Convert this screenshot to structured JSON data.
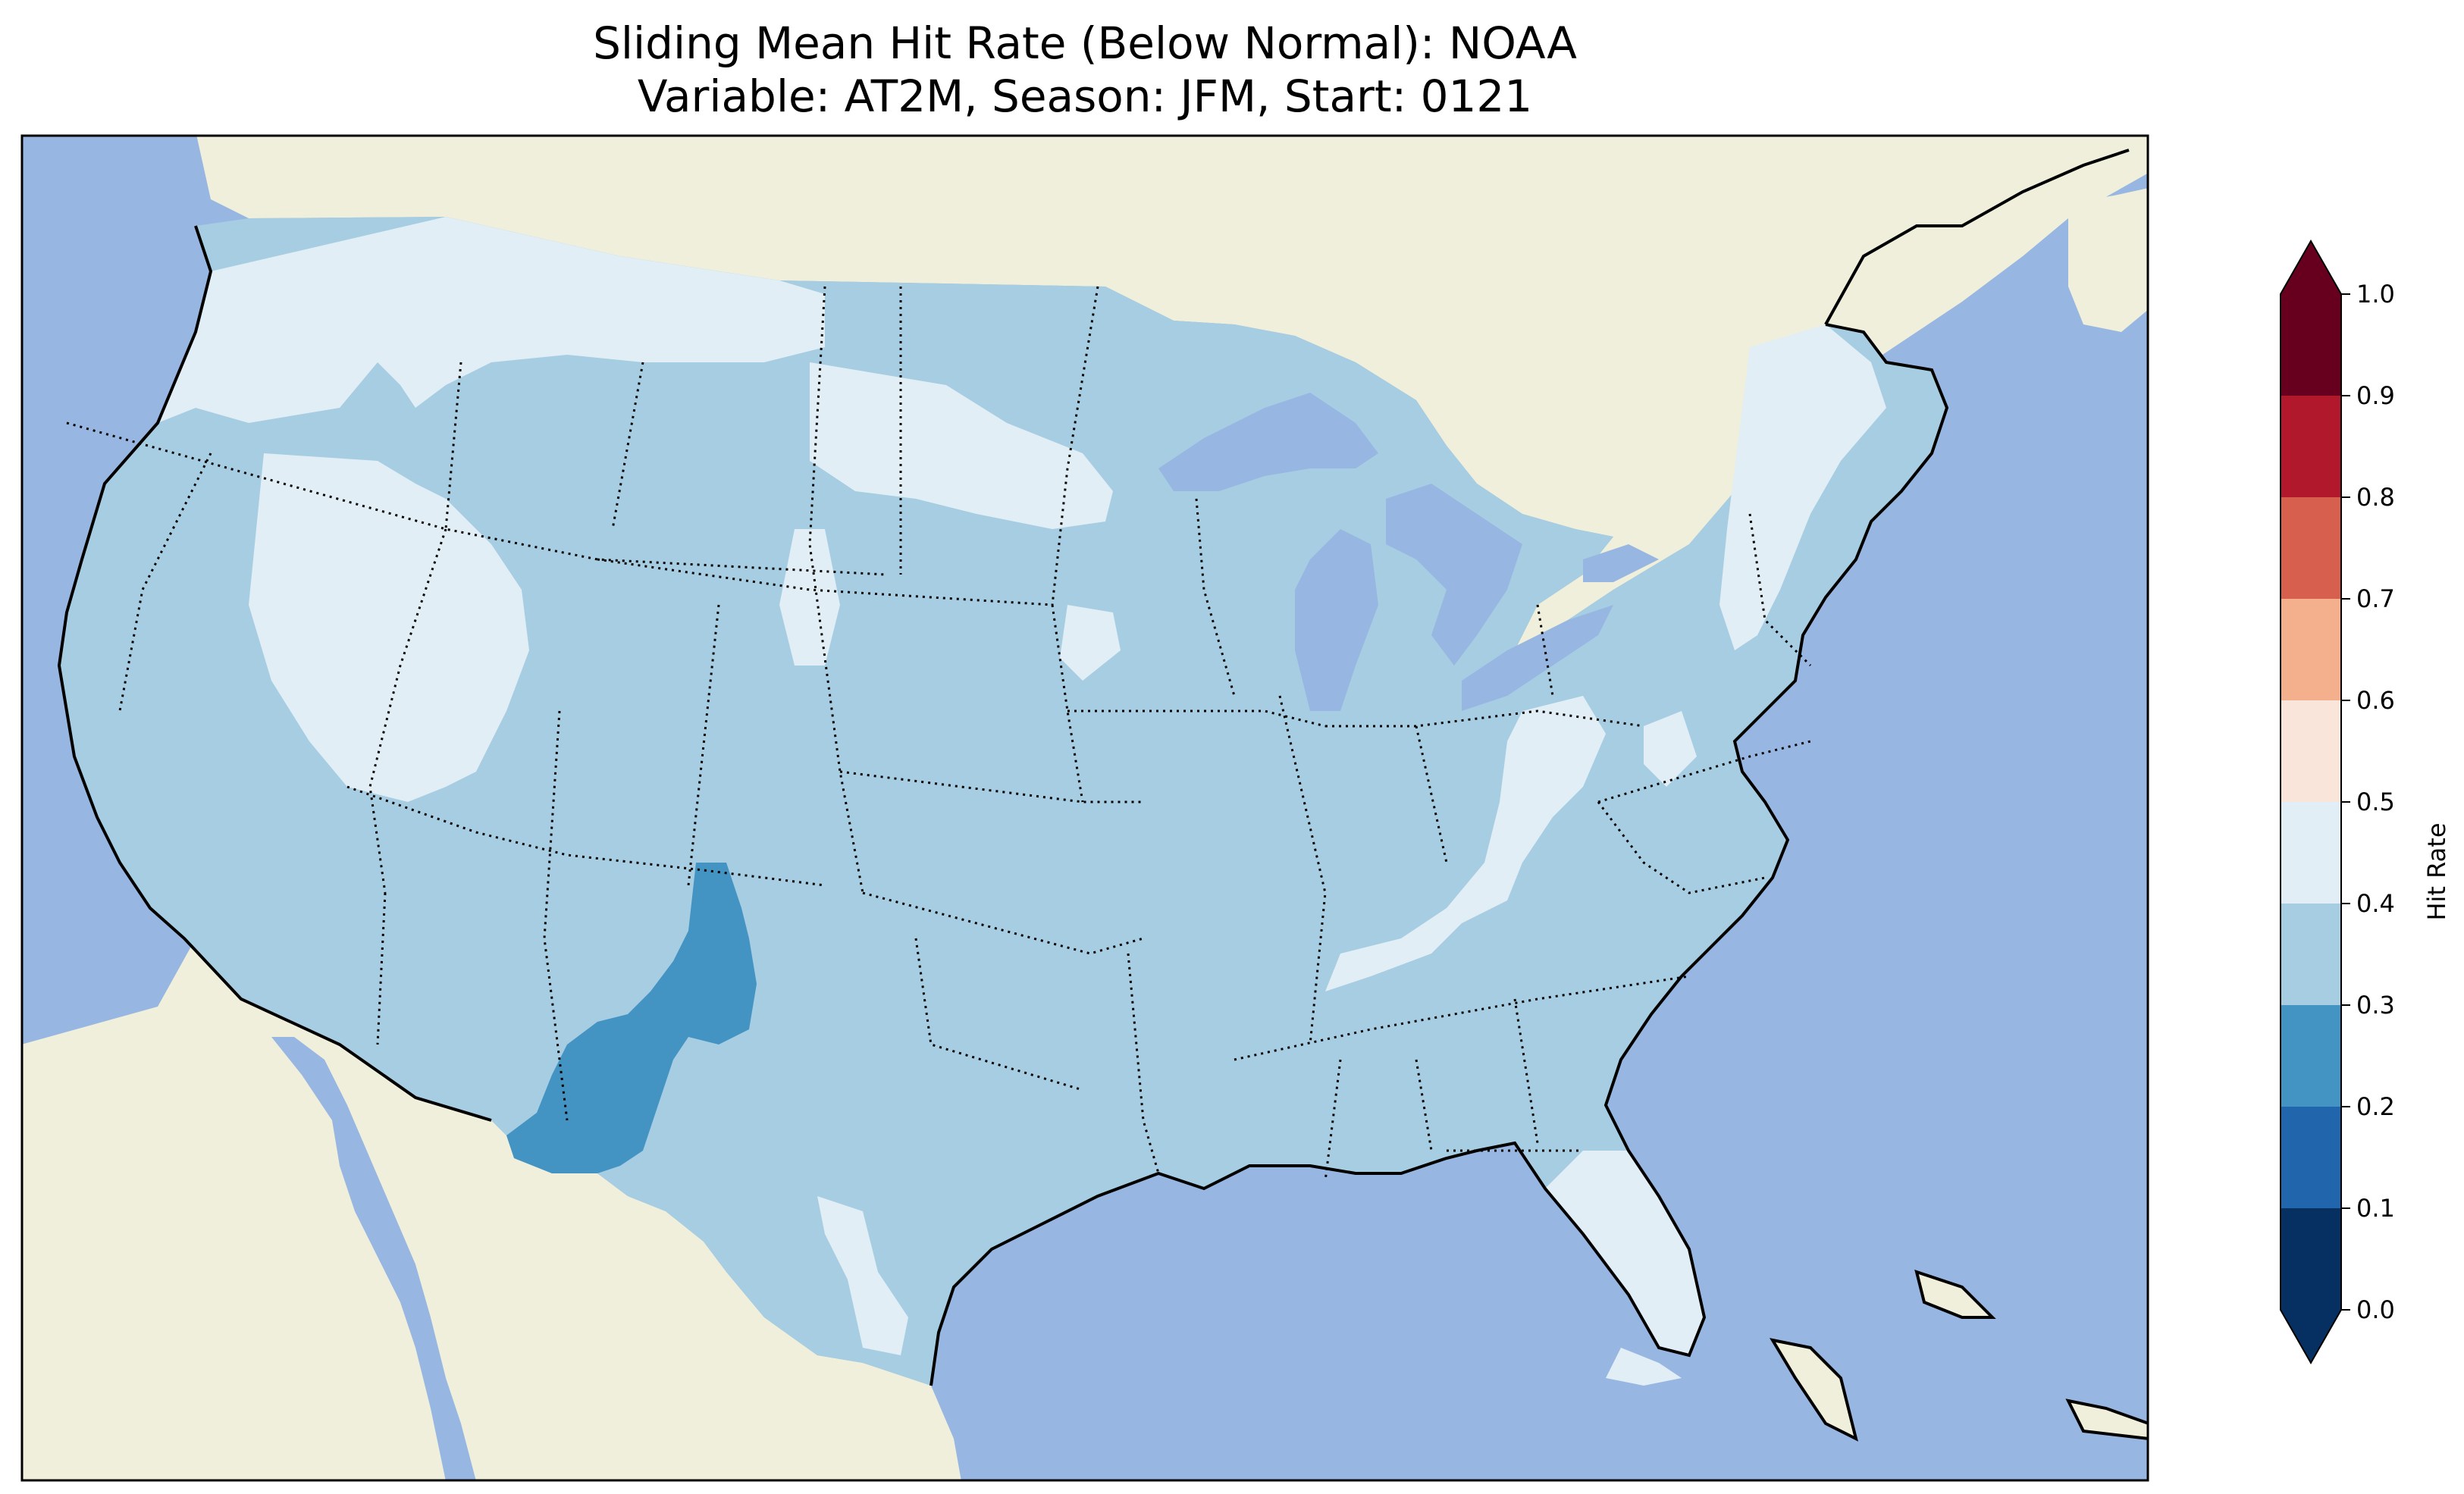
{
  "title": {
    "line1": "Sliding Mean Hit Rate (Below Normal): NOAA",
    "line2": "Variable: AT2M, Season: JFM, Start: 0121"
  },
  "map": {
    "region": "Contiguous United States",
    "ocean_color": "#97b6e1",
    "land_color": "#efefdb",
    "coastline_color": "#000000",
    "state_border_style": "dotted"
  },
  "colorbar": {
    "label": "Hit Rate",
    "ticks": [
      "0.0",
      "0.1",
      "0.2",
      "0.3",
      "0.4",
      "0.5",
      "0.6",
      "0.7",
      "0.8",
      "0.9",
      "1.0"
    ],
    "colors": [
      "#053061",
      "#2166ac",
      "#4393c3",
      "#a6cde2",
      "#e2eef5",
      "#f9e5da",
      "#f4b08d",
      "#d6604d",
      "#b2182b",
      "#67001f"
    ],
    "extend": "both"
  },
  "field": {
    "dominant_range": [
      0.3,
      0.4
    ],
    "regions": [
      {
        "name": "Western interior / Montana",
        "range": [
          0.4,
          0.5
        ]
      },
      {
        "name": "Idaho-Nevada-Utah",
        "range": [
          0.4,
          0.5
        ]
      },
      {
        "name": "Northeast",
        "range": [
          0.4,
          0.5
        ]
      },
      {
        "name": "Appalachians",
        "range": [
          0.4,
          0.5
        ]
      },
      {
        "name": "Florida",
        "range": [
          0.4,
          0.5
        ]
      },
      {
        "name": "New Mexico",
        "range": [
          0.2,
          0.3
        ]
      }
    ]
  }
}
